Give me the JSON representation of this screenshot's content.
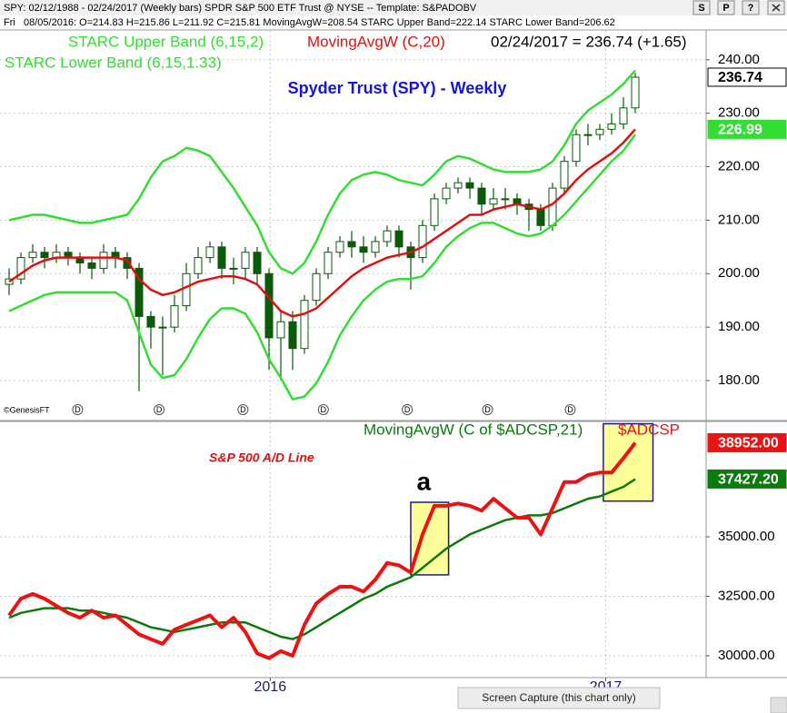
{
  "header": {
    "title": "SPY: 02/12/1988 - 02/24/2017 (Weekly bars)   SPDR S&P 500 ETF Trust @ NYSE  --  Template: S&PADOBV",
    "day": "Fri",
    "info": "08/05/2016:  O=214.83  H=215.86  L=211.92  C=215.81  MovingAvgW=208.54  STARC Upper Band=222.14  STARC Lower Band=206.62",
    "buttons": [
      "S",
      "P",
      "?"
    ]
  },
  "footer": {
    "credit": "©GenesisFT",
    "capture": "Screen Capture (this chart only)"
  },
  "chart_data": [
    {
      "type": "candlestick",
      "title": "Spyder Trust (SPY) - Weekly",
      "title_color": "#1515e0",
      "last_label": "02/24/2017 = 236.74 (+1.65)",
      "candle_color": "#0a5a0a",
      "open": [
        198,
        199,
        203,
        204,
        203,
        204,
        203,
        202,
        201,
        204,
        203,
        201,
        192,
        190,
        190,
        194,
        200,
        203,
        205,
        201,
        201,
        204,
        200,
        188,
        191,
        186,
        195,
        200,
        204,
        206,
        205,
        204,
        206,
        208,
        205,
        203,
        209,
        214,
        216,
        217,
        216,
        213,
        214,
        214,
        213,
        212,
        209,
        216,
        221,
        226,
        226,
        227,
        228,
        231
      ],
      "high": [
        201,
        204,
        205.5,
        205,
        205.5,
        205,
        204,
        203,
        205.5,
        205,
        204,
        202,
        193,
        192,
        196,
        202,
        205,
        206,
        206,
        203,
        205,
        205,
        201,
        193,
        193,
        196,
        201,
        205,
        207,
        208,
        207,
        207,
        209,
        209,
        206,
        210,
        215,
        217,
        218,
        218,
        217,
        216,
        216,
        215,
        214,
        213,
        217,
        222,
        227,
        228,
        228,
        230,
        233,
        237.5
      ],
      "low": [
        196,
        198,
        202,
        201,
        202,
        201.5,
        200,
        199,
        200,
        201,
        199,
        178,
        186,
        181,
        189,
        193,
        199,
        202,
        199,
        198,
        199,
        198,
        182,
        180,
        182,
        185,
        194,
        199,
        203,
        203,
        202,
        203,
        205,
        203,
        197,
        202,
        208,
        213,
        215,
        214,
        211,
        212,
        212,
        211,
        208,
        208,
        208,
        215,
        220,
        224,
        225,
        226,
        227,
        230
      ],
      "close": [
        199,
        203,
        204,
        203,
        204,
        203,
        202,
        201,
        204,
        203,
        201,
        192,
        190,
        190,
        194,
        200,
        203,
        205,
        201,
        201,
        204,
        200,
        188,
        191,
        186,
        195,
        200,
        204,
        206,
        205,
        204,
        206,
        208,
        205,
        203,
        209,
        214,
        216,
        217,
        216,
        213,
        214,
        214,
        213,
        212,
        209,
        216,
        221,
        226,
        226,
        227,
        228,
        231,
        236.74
      ],
      "series": [
        {
          "name": "STARC Upper Band (6,15,2)",
          "color": "#33dd33",
          "values": [
            210,
            210.5,
            211,
            211,
            210.5,
            210,
            209.5,
            209.5,
            210,
            210.5,
            211,
            214,
            218,
            221,
            222,
            223.5,
            223,
            222,
            219,
            216,
            212.5,
            209,
            204,
            201,
            200,
            202,
            206,
            211,
            215,
            217.5,
            218.5,
            219,
            218.5,
            217.5,
            217,
            216.5,
            218.5,
            221,
            222,
            221.5,
            220.5,
            219.5,
            219,
            219,
            219,
            219.5,
            221,
            224,
            228,
            230.5,
            232,
            233.5,
            235.5,
            238
          ]
        },
        {
          "name": "MovingAvgW (C,20)",
          "color": "#e01010",
          "values": [
            198.5,
            200,
            201.5,
            202.5,
            203,
            203,
            203,
            203,
            203,
            203,
            202.5,
            199,
            197,
            196,
            196.5,
            197.5,
            198.5,
            199,
            199.5,
            199.5,
            199,
            198,
            195.5,
            193,
            192,
            192.5,
            193.5,
            195.5,
            197.5,
            199.5,
            201,
            202,
            203,
            203.5,
            204,
            205,
            206.5,
            208,
            209.5,
            211,
            211,
            212,
            212.5,
            213,
            212.5,
            212,
            213,
            215,
            217.5,
            219.5,
            221,
            222.5,
            224.5,
            227
          ]
        },
        {
          "name": "STARC Lower Band (6,15,1.33)",
          "color": "#33dd33",
          "values": [
            193,
            194,
            195,
            196,
            196.5,
            196.5,
            196.5,
            196.5,
            196.5,
            196.5,
            195,
            189,
            183,
            180.5,
            181,
            184,
            188,
            191.5,
            193.5,
            193.5,
            192.5,
            189,
            184,
            180.5,
            176.5,
            177,
            179.5,
            183.5,
            188.5,
            192,
            195,
            197,
            198.5,
            199,
            199,
            199.5,
            202,
            205,
            207,
            208.5,
            209.5,
            209.5,
            208.5,
            207.5,
            207,
            207.5,
            209,
            211,
            213.5,
            216,
            218.5,
            221,
            223,
            226
          ]
        }
      ],
      "xlim": [
        -0.77,
        59
      ],
      "ylim": [
        172.7,
        245.4
      ],
      "xticks": [
        22.1,
        50.5
      ],
      "yticks": [
        {
          "value": 180,
          "label": "180.00"
        },
        {
          "value": 190,
          "label": "190.00"
        },
        {
          "value": 200,
          "label": "200.00"
        },
        {
          "value": 210,
          "label": "210.00"
        },
        {
          "value": 220,
          "label": "220.00"
        },
        {
          "value": 230,
          "label": "230.00"
        },
        {
          "value": 240,
          "label": "240.00"
        }
      ],
      "grid": true,
      "end_labels": [
        {
          "value": 236.74,
          "label": "236.74",
          "box": "#ffffff",
          "text_color": "#000000"
        },
        {
          "value": 226.99,
          "label": "226.99",
          "box": "#33dd33",
          "text_color": "#ffffff"
        }
      ],
      "dividends": {
        "label": "D",
        "x": [
          5.8,
          12.7,
          19.8,
          26.6,
          33.7,
          40.5,
          47.5
        ]
      }
    },
    {
      "type": "line",
      "title": "S&P 500 A/D Line",
      "title_color": "#e01010",
      "series": [
        {
          "name": "MovingAvgW (C of $ADCSP,21)",
          "color": "#0a7a0a",
          "values": [
            31600,
            31800,
            31900,
            32000,
            32000,
            32000,
            31900,
            31900,
            31800,
            31700,
            31600,
            31400,
            31200,
            31100,
            31000,
            31100,
            31200,
            31300,
            31400,
            31400,
            31400,
            31200,
            31000,
            30800,
            30700,
            30900,
            31200,
            31500,
            31800,
            32100,
            32400,
            32600,
            32900,
            33100,
            33300,
            33700,
            34100,
            34500,
            34800,
            35100,
            35300,
            35500,
            35700,
            35800,
            35900,
            35900,
            36000,
            36200,
            36400,
            36600,
            36700,
            36900,
            37100,
            37420
          ]
        },
        {
          "name": "$ADCSP",
          "color": "#ee1111",
          "values": [
            31700,
            32400,
            32600,
            32400,
            32100,
            31800,
            31600,
            31900,
            31600,
            31700,
            31300,
            30900,
            30700,
            30500,
            31100,
            31300,
            31500,
            31700,
            31200,
            31600,
            31000,
            30100,
            29900,
            30200,
            30000,
            31300,
            32200,
            32600,
            32900,
            32900,
            32700,
            33200,
            33900,
            33800,
            33500,
            35100,
            36300,
            36300,
            36400,
            36300,
            36100,
            36600,
            36200,
            35800,
            35800,
            35100,
            36200,
            37300,
            37300,
            37600,
            37700,
            37700,
            38300,
            38950
          ]
        }
      ],
      "xlim": [
        -0.77,
        59
      ],
      "ylim": [
        29122,
        39809
      ],
      "xticks": [
        {
          "value": 22.1,
          "label": "2016"
        },
        {
          "value": 50.5,
          "label": "2017"
        }
      ],
      "yticks": [
        {
          "value": 30000,
          "label": "30000.00"
        },
        {
          "value": 32500,
          "label": "32500.00"
        },
        {
          "value": 35000,
          "label": "35000.00"
        }
      ],
      "grid": true,
      "highlights": [
        {
          "x": [
            34,
            37.2
          ],
          "y": [
            33400,
            36450
          ]
        },
        {
          "x": [
            50.3,
            54.5
          ],
          "y": [
            36500,
            39750
          ]
        }
      ],
      "highlight_color": "#ffff99",
      "annotations": [
        {
          "text": "a",
          "x": 35.1,
          "y": 37250
        }
      ],
      "end_labels": [
        {
          "value": 38952,
          "label": "38952.00",
          "box": "#ee1111",
          "text_color": "#ffffff"
        },
        {
          "value": 37427.2,
          "label": "37427.20",
          "box": "#0a7a0a",
          "text_color": "#ffffff"
        }
      ]
    }
  ]
}
